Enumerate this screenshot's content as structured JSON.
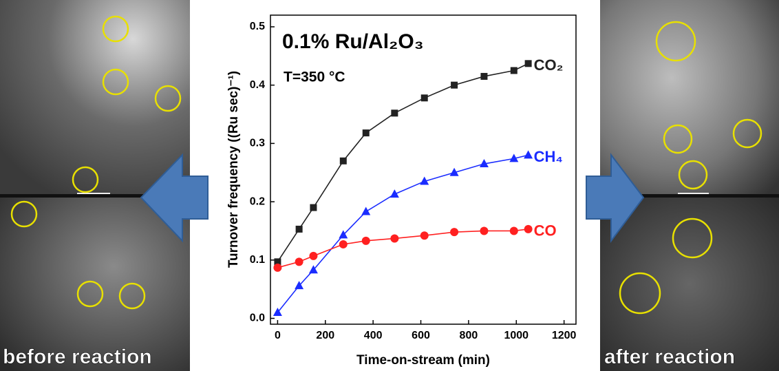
{
  "chart_data": {
    "type": "line",
    "annotation": "0.1% Ru/Al₂O₃",
    "condition": "T=350 °C",
    "x_label": "Time-on-stream (min)",
    "y_label": "Turnover frequency ((Ru sec)⁻¹)",
    "x": [
      0,
      90,
      150,
      275,
      370,
      490,
      615,
      740,
      865,
      990,
      1050
    ],
    "series": [
      {
        "name": "CO₂",
        "color": "#222222",
        "marker": "square",
        "values": [
          0.097,
          0.153,
          0.19,
          0.27,
          0.318,
          0.352,
          0.378,
          0.4,
          0.415,
          0.425,
          0.437
        ]
      },
      {
        "name": "CH₄",
        "color": "#1a2cff",
        "marker": "triangle",
        "values": [
          0.01,
          0.056,
          0.083,
          0.143,
          0.183,
          0.213,
          0.235,
          0.25,
          0.265,
          0.274,
          0.28
        ]
      },
      {
        "name": "CO",
        "color": "#ff2020",
        "marker": "circle",
        "values": [
          0.087,
          0.097,
          0.107,
          0.127,
          0.133,
          0.137,
          0.142,
          0.148,
          0.15,
          0.15,
          0.153
        ]
      }
    ],
    "xlim": [
      -30,
      1250
    ],
    "ylim": [
      -0.01,
      0.52
    ],
    "xticks": [
      0,
      200,
      400,
      600,
      800,
      1000,
      1200
    ],
    "yticks": [
      {
        "value": 0,
        "label": "0.0"
      },
      0.1,
      0.2,
      0.3,
      0.4,
      0.5
    ],
    "grid": false
  },
  "images": {
    "left_label": "before reaction",
    "right_label": "after reaction"
  }
}
